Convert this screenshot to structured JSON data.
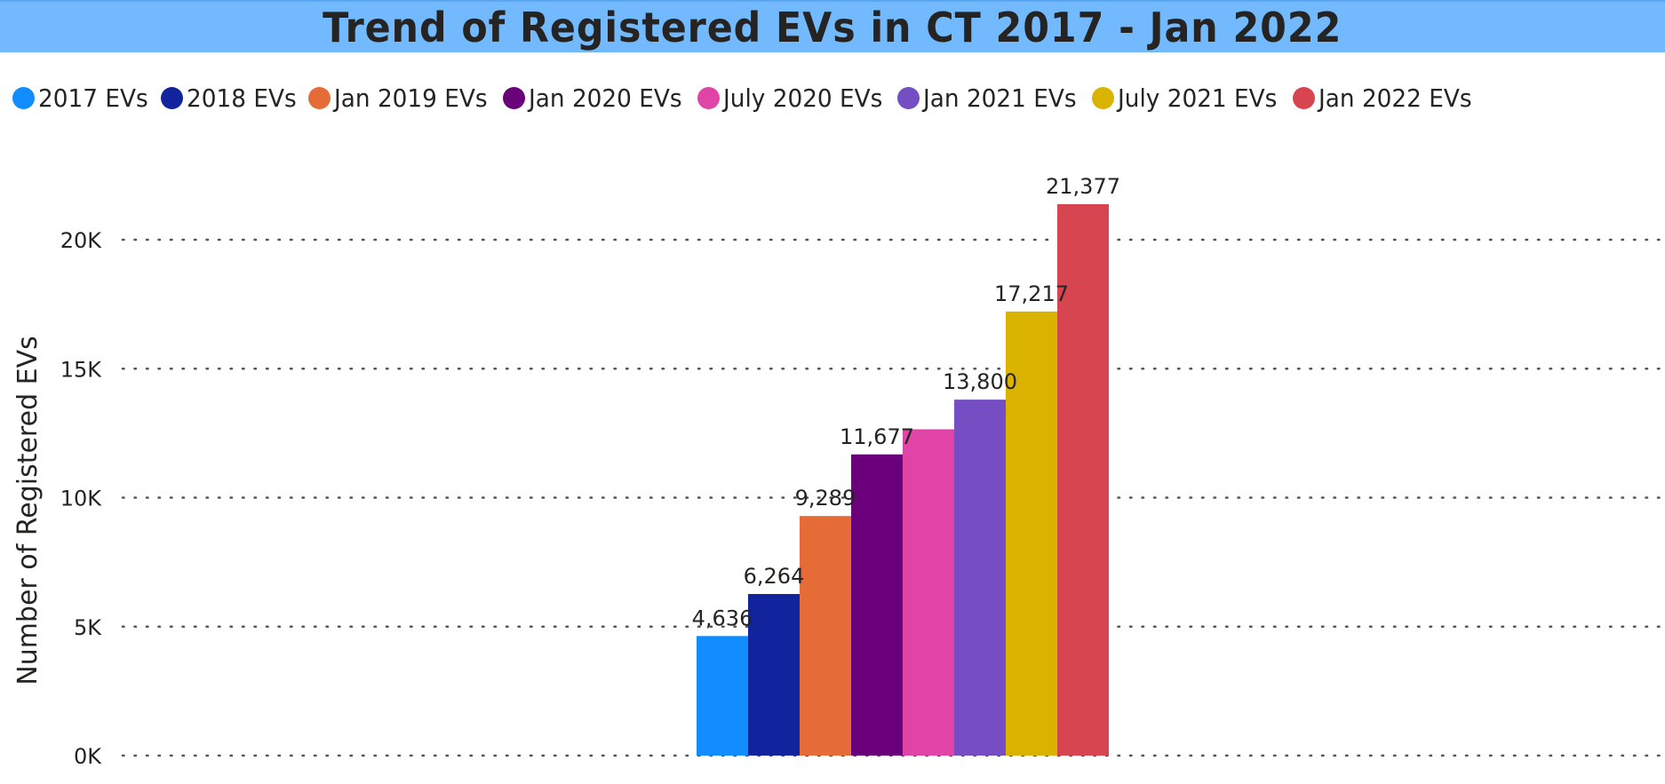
{
  "chart_data": {
    "type": "bar",
    "title": "Trend of Registered EVs in CT 2017 - Jan 2022",
    "ylabel": "Number of Registered EVs",
    "xlabel": "",
    "ylim": [
      0,
      22000
    ],
    "y_ticks": [
      {
        "value": 0,
        "label": "0K"
      },
      {
        "value": 5000,
        "label": "5K"
      },
      {
        "value": 10000,
        "label": "10K"
      },
      {
        "value": 15000,
        "label": "15K"
      },
      {
        "value": 20000,
        "label": "20K"
      }
    ],
    "grid": true,
    "legend_position": "top-left",
    "series": [
      {
        "name": "2017 EVs",
        "value": 4636,
        "label": "4,636",
        "color": "#118dff"
      },
      {
        "name": "2018 EVs",
        "value": 6264,
        "label": "6,264",
        "color": "#12239e"
      },
      {
        "name": "Jan 2019 EVs",
        "value": 9289,
        "label": "9,289",
        "color": "#e66c37"
      },
      {
        "name": "Jan 2020 EVs",
        "value": 11677,
        "label": "11,677",
        "color": "#6b007b"
      },
      {
        "name": "July 2020 EVs",
        "value": 12650,
        "label": "",
        "color": "#e044a7"
      },
      {
        "name": "Jan 2021 EVs",
        "value": 13800,
        "label": "13,800",
        "color": "#744ec2"
      },
      {
        "name": "July 2021 EVs",
        "value": 17217,
        "label": "17,217",
        "color": "#d9b300"
      },
      {
        "name": "Jan 2022 EVs",
        "value": 21377,
        "label": "21,377",
        "color": "#d64550"
      }
    ]
  }
}
